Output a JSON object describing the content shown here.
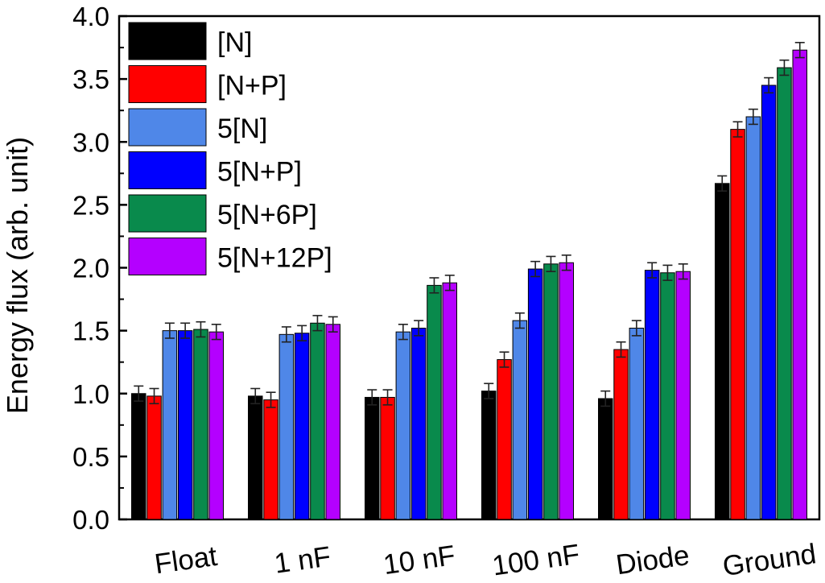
{
  "chart_data": {
    "type": "bar",
    "title": "",
    "xlabel": "",
    "ylabel": "Energy flux (arb. unit)",
    "ylim": [
      0,
      4.0
    ],
    "yticks": [
      "0.0",
      "0.5",
      "1.0",
      "1.5",
      "2.0",
      "2.5",
      "3.0",
      "3.5",
      "4.0"
    ],
    "categories": [
      "Float",
      "1 nF",
      "10 nF",
      "100 nF",
      "Diode",
      "Ground"
    ],
    "grid": false,
    "legend_position": "top-left",
    "series": [
      {
        "name": "[N]",
        "color": "#000000",
        "values": [
          1.0,
          0.98,
          0.97,
          1.02,
          0.96,
          2.67
        ],
        "errors": [
          0.06,
          0.06,
          0.06,
          0.06,
          0.06,
          0.06
        ]
      },
      {
        "name": "[N+P]",
        "color": "#ff0000",
        "values": [
          0.98,
          0.95,
          0.97,
          1.27,
          1.35,
          3.1
        ],
        "errors": [
          0.06,
          0.06,
          0.06,
          0.06,
          0.06,
          0.06
        ]
      },
      {
        "name": "5[N]",
        "color": "#4f87e8",
        "values": [
          1.5,
          1.47,
          1.49,
          1.58,
          1.52,
          3.2
        ],
        "errors": [
          0.06,
          0.06,
          0.06,
          0.06,
          0.06,
          0.06
        ]
      },
      {
        "name": "5[N+P]",
        "color": "#0000ff",
        "values": [
          1.5,
          1.48,
          1.52,
          1.99,
          1.98,
          3.45
        ],
        "errors": [
          0.06,
          0.06,
          0.06,
          0.06,
          0.06,
          0.06
        ]
      },
      {
        "name": "5[N+6P]",
        "color": "#098a4c",
        "values": [
          1.51,
          1.56,
          1.86,
          2.03,
          1.96,
          3.59
        ],
        "errors": [
          0.06,
          0.06,
          0.06,
          0.06,
          0.06,
          0.06
        ]
      },
      {
        "name": "5[N+12P]",
        "color": "#b400ff",
        "values": [
          1.49,
          1.55,
          1.88,
          2.04,
          1.97,
          3.73
        ],
        "errors": [
          0.06,
          0.06,
          0.06,
          0.06,
          0.06,
          0.06
        ]
      }
    ]
  }
}
